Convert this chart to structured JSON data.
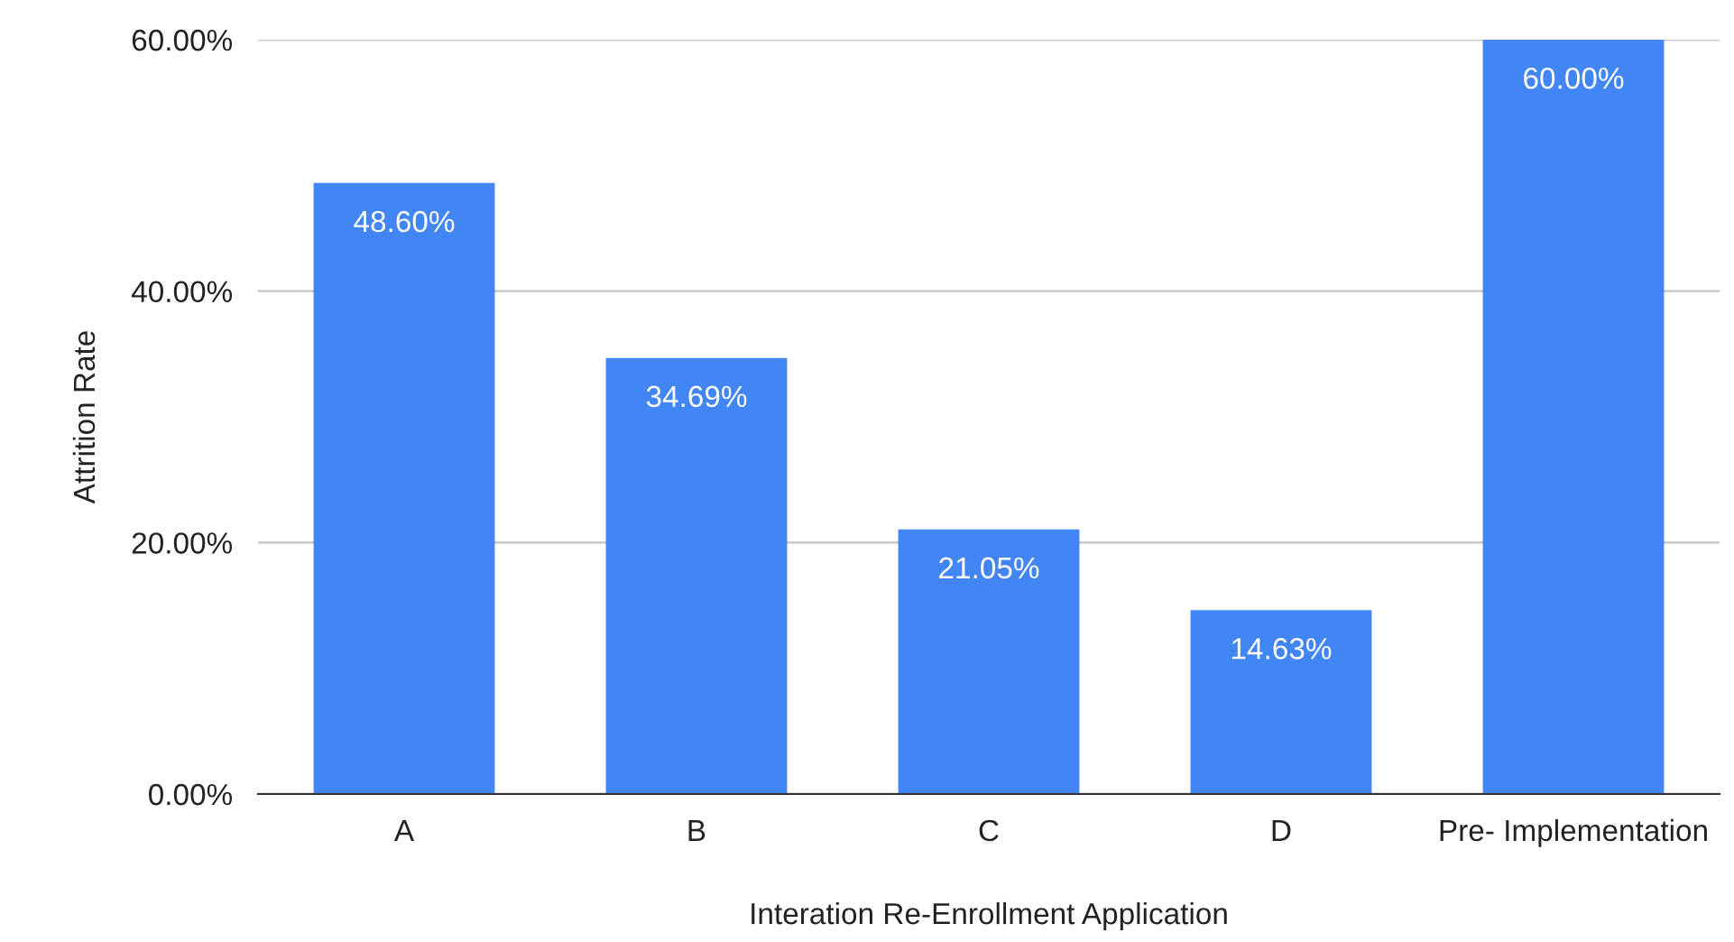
{
  "chart_data": {
    "type": "bar",
    "xlabel": "Interation Re-Enrollment Application",
    "ylabel": "Attrition Rate",
    "categories": [
      "A",
      "B",
      "C",
      "D",
      "Pre- Implementation"
    ],
    "values": [
      48.6,
      34.69,
      21.05,
      14.63,
      60.0
    ],
    "value_labels": [
      "48.60%",
      "34.69%",
      "21.05%",
      "14.63%",
      "60.00%"
    ],
    "color": "#4285f4",
    "ylim": [
      0,
      60
    ],
    "yticks": [
      {
        "value": 0,
        "label": "0.00%"
      },
      {
        "value": 20,
        "label": "20.00%"
      },
      {
        "value": 40,
        "label": "40.00%"
      },
      {
        "value": 60,
        "label": "60.00%"
      }
    ],
    "grid": "y"
  }
}
